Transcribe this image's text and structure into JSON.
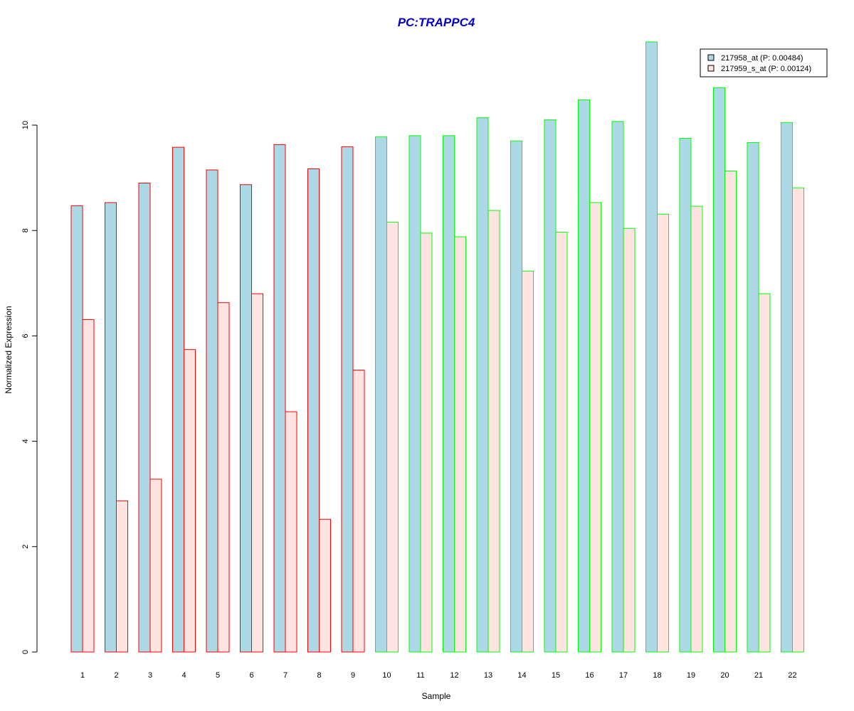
{
  "chart_data": {
    "type": "bar",
    "title": "PC:TRAPPC4",
    "xlabel": "Sample",
    "ylabel": "Normalized Expression",
    "ylim": [
      0,
      11.6
    ],
    "yticks": [
      0,
      2,
      4,
      6,
      8,
      10
    ],
    "grid": false,
    "legend_position": "top-right",
    "categories": [
      "1",
      "2",
      "3",
      "4",
      "5",
      "6",
      "7",
      "8",
      "9",
      "10",
      "11",
      "12",
      "13",
      "14",
      "15",
      "16",
      "17",
      "18",
      "19",
      "20",
      "21",
      "22"
    ],
    "series": [
      {
        "name": "217958_at (P: 0.00484)",
        "fill": "#add8e6",
        "values": [
          8.47,
          8.53,
          8.9,
          9.58,
          9.15,
          8.87,
          9.63,
          9.17,
          9.59,
          9.78,
          9.8,
          9.8,
          10.14,
          9.7,
          10.1,
          10.48,
          10.07,
          11.58,
          9.75,
          10.71,
          9.67,
          10.05
        ]
      },
      {
        "name": "217959_s_at (P: 0.00124)",
        "fill": "#ffe4e1",
        "values": [
          6.31,
          2.87,
          3.28,
          5.74,
          6.63,
          6.8,
          4.56,
          2.52,
          5.35,
          8.16,
          7.95,
          7.88,
          8.38,
          7.23,
          7.97,
          8.53,
          8.04,
          8.31,
          8.46,
          9.13,
          6.8,
          8.81
        ]
      }
    ],
    "group_border_colors": [
      "#ff0000",
      "#ff0000",
      "#ff0000",
      "#ff0000",
      "#ff0000",
      "#ff0000",
      "#ff0000",
      "#ff0000",
      "#ff0000",
      "#00ff00",
      "#00ff00",
      "#00ff00",
      "#00ff00",
      "#00ff00",
      "#00ff00",
      "#00ff00",
      "#00ff00",
      "#00ff00",
      "#00ff00",
      "#00ff00",
      "#00ff00",
      "#00ff00"
    ],
    "title_color": "#0000cc"
  }
}
